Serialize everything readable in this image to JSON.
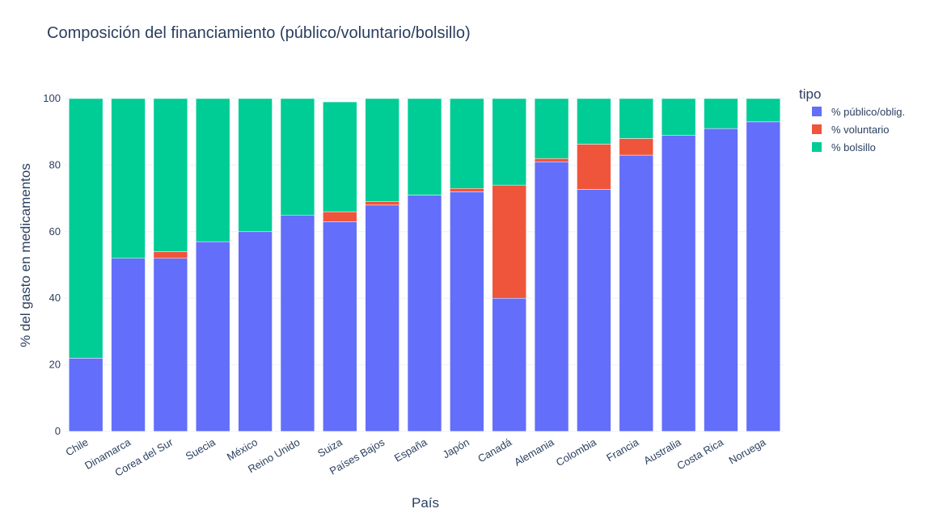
{
  "chart_data": {
    "type": "bar",
    "barmode": "stack",
    "title": "Composición del financiamiento (público/voluntario/bolsillo)",
    "xlabel": "País",
    "ylabel": "% del gasto en medicamentos",
    "ylim": [
      0,
      100
    ],
    "yticks": [
      0,
      20,
      40,
      60,
      80,
      100
    ],
    "grid": true,
    "legend_title": "tipo",
    "legend_position": "top-right",
    "categories": [
      "Chile",
      "Dinamarca",
      "Corea del Sur",
      "Suecia",
      "México",
      "Reino Unido",
      "Suiza",
      "Países Bajos",
      "España",
      "Japón",
      "Canadá",
      "Alemania",
      "Colombia",
      "Francia",
      "Australia",
      "Costa Rica",
      "Noruega"
    ],
    "series": [
      {
        "name": "% público/oblig.",
        "color": "#636efa",
        "values": [
          22,
          52,
          52,
          57,
          60,
          65,
          63,
          68,
          71,
          72,
          40,
          81,
          72.7,
          83,
          89,
          91,
          93
        ]
      },
      {
        "name": "% voluntario",
        "color": "#ef553b",
        "values": [
          0,
          0,
          2,
          0,
          0,
          0,
          3,
          1,
          0,
          1,
          34,
          1,
          13.6,
          5,
          0,
          0,
          0
        ]
      },
      {
        "name": "% bolsillo",
        "color": "#00cc96",
        "values": [
          78,
          48,
          46,
          43,
          40,
          35,
          33,
          31,
          29,
          27,
          26,
          18,
          13.7,
          12,
          11,
          9,
          7
        ]
      }
    ]
  }
}
